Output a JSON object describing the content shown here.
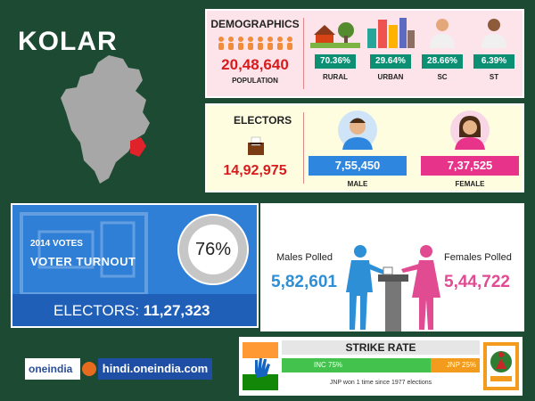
{
  "header": {
    "title": "KOLAR"
  },
  "demographics": {
    "heading": "DEMOGRAPHICS",
    "population_value": "20,48,640",
    "population_label": "POPULATION",
    "stats": [
      {
        "value": "70.36%",
        "label": "RURAL",
        "icon": "village-icon"
      },
      {
        "value": "29.64%",
        "label": "URBAN",
        "icon": "city-icon"
      },
      {
        "value": "28.66%",
        "label": "SC",
        "icon": "man-icon"
      },
      {
        "value": "6.39%",
        "label": "ST",
        "icon": "man-icon"
      }
    ],
    "colors": {
      "value": "#d81b1b",
      "badge": "#0d8f74",
      "panel": "#fde4ea"
    }
  },
  "electors": {
    "heading": "ELECTORS",
    "total": "14,92,975",
    "male_value": "7,55,450",
    "male_label": "MALE",
    "female_value": "7,37,525",
    "female_label": "FEMALE",
    "colors": {
      "male": "#2e86de",
      "female": "#e8338b",
      "panel": "#fffde0"
    }
  },
  "turnout": {
    "year_label": "2014 VOTES",
    "label": "VOTER TURNOUT",
    "percent": "76%",
    "percent_fraction": 0.76,
    "electors_label": "ELECTORS:",
    "electors_value": "11,27,323",
    "colors": {
      "panel": "#2f7fd6",
      "bar": "#1f5fb8"
    }
  },
  "polled": {
    "males_label": "Males Polled",
    "males_value": "5,82,601",
    "females_label": "Females Polled",
    "females_value": "5,44,722",
    "colors": {
      "male": "#2d8fd5",
      "female": "#e04b92"
    }
  },
  "brand": {
    "logo_text": "oneindia",
    "site": "hindi.oneindia.com"
  },
  "strike_rate": {
    "heading": "STRIKE RATE",
    "inc_label": "INC 75%",
    "jnp_label": "JNP 25%",
    "inc_fraction": 0.75,
    "jnp_fraction": 0.25,
    "note": "JNP won 1 time since 1977 elections",
    "colors": {
      "inc": "#43c24d",
      "jnp": "#f29b1d"
    }
  },
  "colors": {
    "background": "#1d4a33"
  }
}
